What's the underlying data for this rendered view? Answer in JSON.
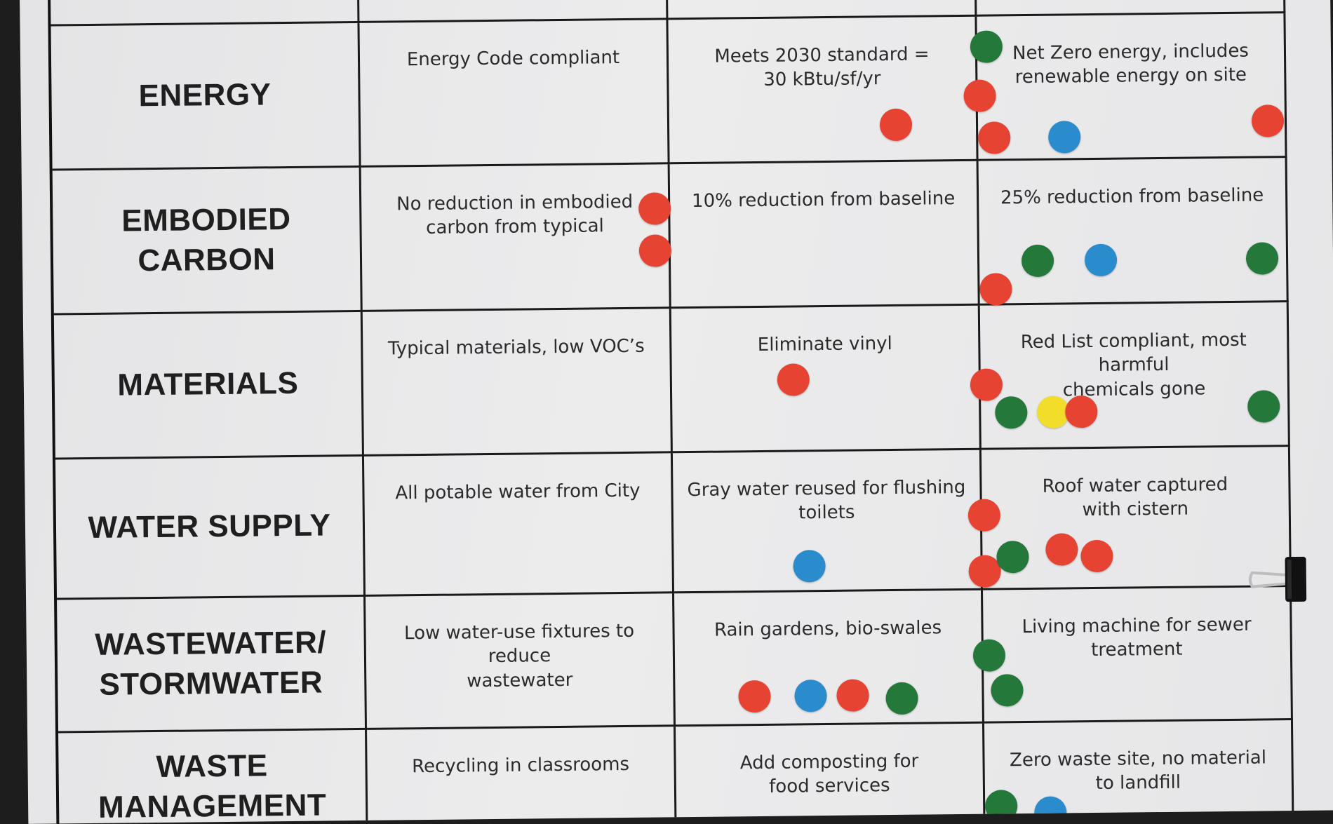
{
  "rows": [
    {
      "category": "ENERGY",
      "baseline": "Energy Code compliant",
      "better": "Meets 2030 standard =\n30 kBtu/sf/yr",
      "best": "Net Zero energy, includes\nrenewable energy on site"
    },
    {
      "category": "EMBODIED\nCARBON",
      "baseline": "No reduction in embodied\ncarbon from typical",
      "better": "10% reduction from baseline",
      "best": "25% reduction from baseline"
    },
    {
      "category": "MATERIALS",
      "baseline": "Typical materials, low VOC’s",
      "better": "Eliminate vinyl",
      "best": "Red List compliant, most harmful\nchemicals gone"
    },
    {
      "category": "WATER SUPPLY",
      "baseline": "All potable water from City",
      "better": "Gray water reused for flushing\ntoilets",
      "best": "Roof water captured\nwith cistern"
    },
    {
      "category": "WASTEWATER/\nSTORMWATER",
      "baseline": "Low water-use fixtures to reduce\nwastewater",
      "better": "Rain gardens, bio-swales",
      "best": "Living machine for sewer\ntreatment"
    },
    {
      "category": "WASTE\nMANAGEMENT",
      "baseline": "Recycling in classrooms",
      "better": "Add composting for\nfood services",
      "best": "Zero waste site, no material\nto landfill"
    }
  ],
  "sticker_colors": {
    "red": "#e64332",
    "green": "#23783a",
    "blue": "#2b8ccd",
    "yellow": "#f2de2a"
  },
  "stickers": [
    {
      "row": 0,
      "column": "better",
      "color": "red"
    },
    {
      "row": 0,
      "column": "best",
      "color": "green"
    },
    {
      "row": 0,
      "column": "best",
      "color": "red"
    },
    {
      "row": 0,
      "column": "best",
      "color": "red"
    },
    {
      "row": 0,
      "column": "best",
      "color": "blue"
    },
    {
      "row": 0,
      "column": "best",
      "color": "red"
    },
    {
      "row": 1,
      "column": "baseline",
      "color": "red"
    },
    {
      "row": 1,
      "column": "baseline",
      "color": "red"
    },
    {
      "row": 1,
      "column": "best",
      "color": "green"
    },
    {
      "row": 1,
      "column": "best",
      "color": "blue"
    },
    {
      "row": 1,
      "column": "best",
      "color": "green"
    },
    {
      "row": 1,
      "column": "best",
      "color": "red"
    },
    {
      "row": 2,
      "column": "better",
      "color": "red"
    },
    {
      "row": 2,
      "column": "best",
      "color": "red"
    },
    {
      "row": 2,
      "column": "best",
      "color": "green"
    },
    {
      "row": 2,
      "column": "best",
      "color": "yellow"
    },
    {
      "row": 2,
      "column": "best",
      "color": "red"
    },
    {
      "row": 2,
      "column": "best",
      "color": "green"
    },
    {
      "row": 3,
      "column": "better",
      "color": "blue"
    },
    {
      "row": 3,
      "column": "best",
      "color": "red"
    },
    {
      "row": 3,
      "column": "best",
      "color": "red"
    },
    {
      "row": 3,
      "column": "best",
      "color": "green"
    },
    {
      "row": 3,
      "column": "best",
      "color": "red"
    },
    {
      "row": 3,
      "column": "best",
      "color": "red"
    },
    {
      "row": 4,
      "column": "better",
      "color": "red"
    },
    {
      "row": 4,
      "column": "better",
      "color": "blue"
    },
    {
      "row": 4,
      "column": "better",
      "color": "red"
    },
    {
      "row": 4,
      "column": "better",
      "color": "green"
    },
    {
      "row": 4,
      "column": "best",
      "color": "green"
    },
    {
      "row": 4,
      "column": "best",
      "color": "green"
    },
    {
      "row": 5,
      "column": "best",
      "color": "green"
    },
    {
      "row": 5,
      "column": "best",
      "color": "blue"
    }
  ]
}
